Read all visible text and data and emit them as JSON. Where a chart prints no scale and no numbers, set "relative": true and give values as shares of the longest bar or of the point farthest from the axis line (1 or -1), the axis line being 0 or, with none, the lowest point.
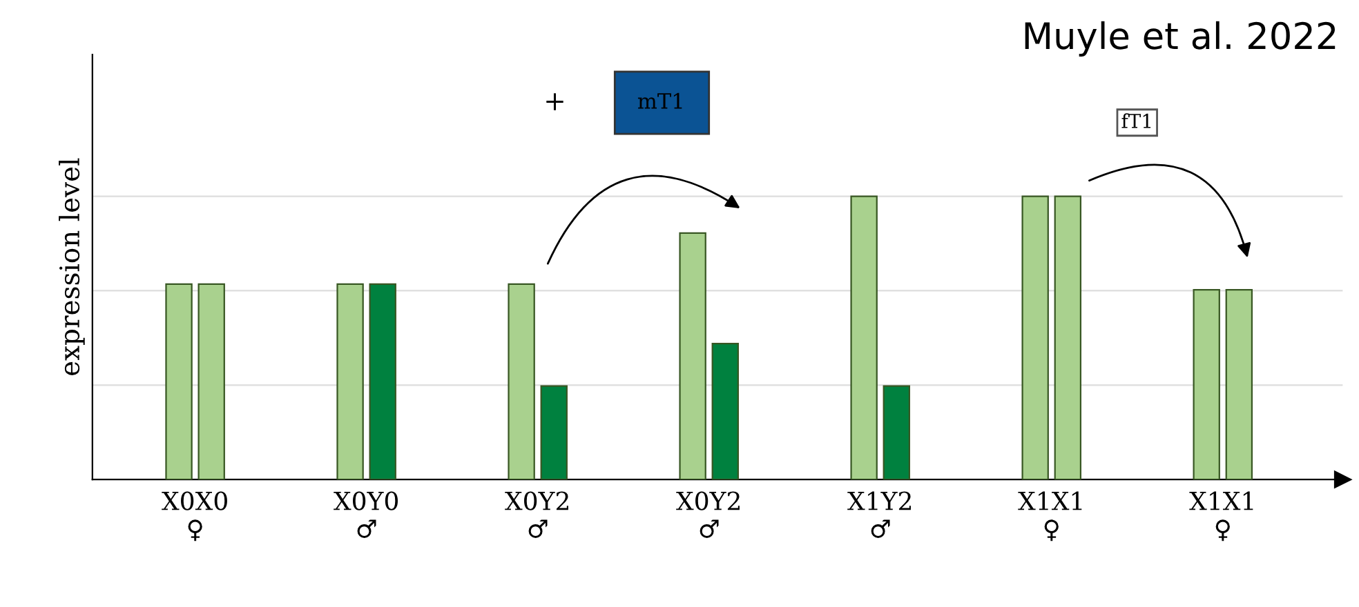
{
  "chart_data": {
    "type": "bar",
    "relative": true,
    "ylabel": "expression level",
    "categories": [
      "X0X0\n♀",
      "X0Y0\n♂",
      "X0Y2\n♂",
      "X0Y2\n♂",
      "X1Y2\n♂",
      "X1X1\n♀",
      "X1X1\n♀"
    ],
    "series": [
      {
        "colors": [
          "#a9d18e",
          "#a9d18e",
          "#a9d18e",
          "#a9d18e",
          "#a9d18e",
          "#a9d18e",
          "#a9d18e"
        ],
        "values": [
          0.69,
          0.69,
          0.69,
          0.87,
          1,
          1,
          0.67
        ]
      },
      {
        "colors": [
          "#a9d18e",
          "#00813f",
          "#00813f",
          "#00813f",
          "#00813f",
          "#a9d18e",
          "#a9d18e"
        ],
        "values": [
          0.69,
          0.69,
          0.33,
          0.48,
          0.33,
          1,
          0.67
        ]
      }
    ],
    "ref_lines": [
      {
        "axis": "y",
        "value": 0.333,
        "color": "#dddddd"
      },
      {
        "axis": "y",
        "value": 0.667,
        "color": "#dddddd"
      },
      {
        "axis": "y",
        "value": 1,
        "color": "#dddddd"
      }
    ],
    "annotations": [
      "Muyle et al. 2022",
      "+",
      "mT1",
      "fT1"
    ]
  }
}
